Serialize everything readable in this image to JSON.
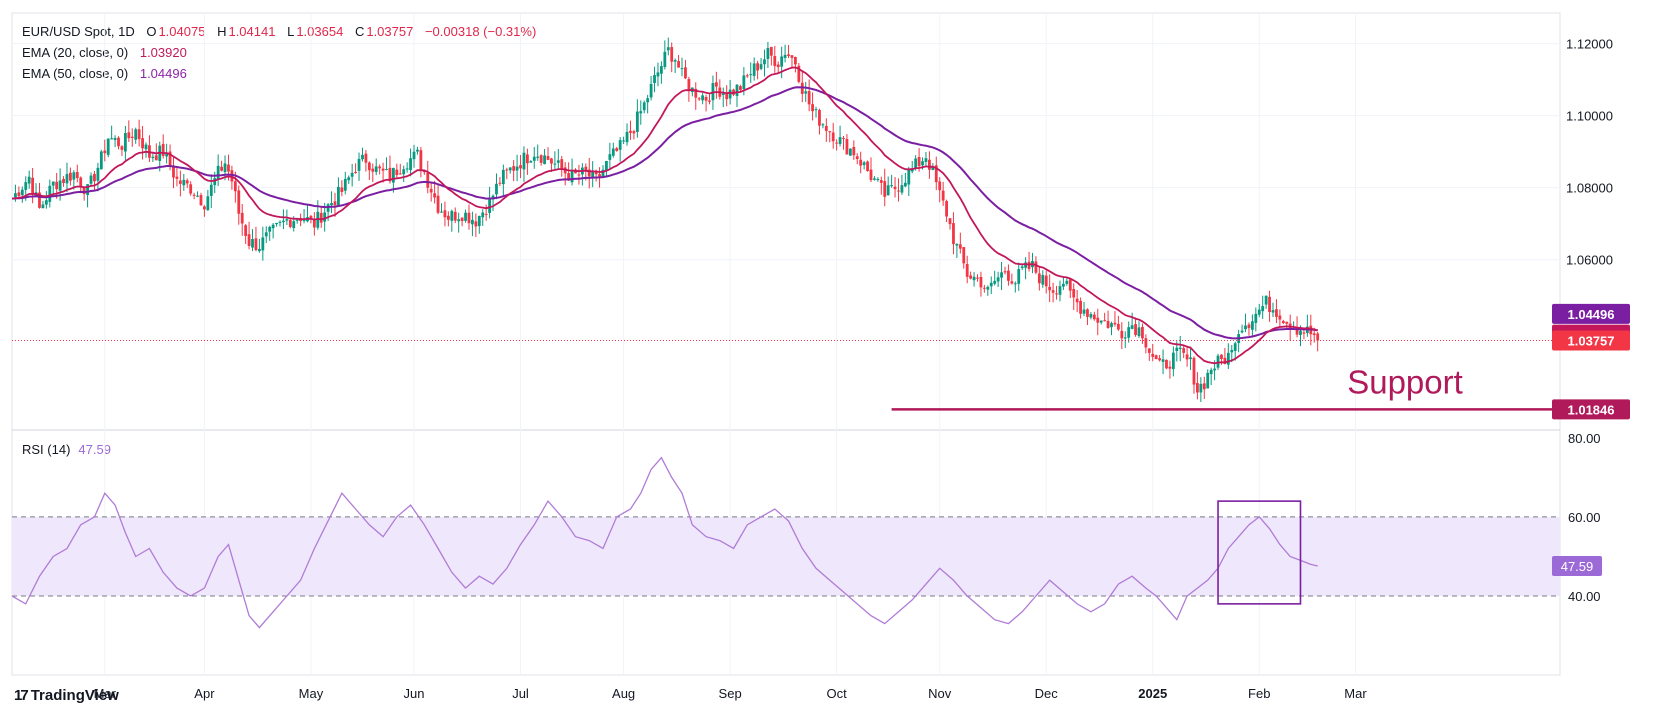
{
  "header": {
    "symbol": "EUR/USD Spot, 1D",
    "open_label": "O",
    "open": "1.04075",
    "high_label": "H",
    "high": "1.04141",
    "low_label": "L",
    "low": "1.03654",
    "close_label": "C",
    "close": "1.03757",
    "change": "−0.00318 (−0.31%)",
    "ema20_label": "EMA (20, close, 0)",
    "ema20_value": "1.03920",
    "ema50_label": "EMA (50, close, 0)",
    "ema50_value": "1.04496"
  },
  "rsi_legend": {
    "label": "RSI (14)",
    "value": "47.59"
  },
  "branding": {
    "name": "TradingView"
  },
  "colors": {
    "up": "#089981",
    "down": "#f23645",
    "ema20": "#c2185b",
    "ema50": "#7b1fa2",
    "support": "#b0195a",
    "rsi": "#b07cd6",
    "rsi_band": "#efe7fb"
  },
  "annotations": {
    "support_text": "Support",
    "support_price": "1.01846",
    "current_price": "1.03757",
    "ema20_tag": "1.03920",
    "ema50_tag": "1.04496",
    "rsi_tag": "47.59"
  },
  "chart_data": [
    {
      "type": "candlestick",
      "title": "EUR/USD Spot, 1D",
      "y_ticks": [
        "1.12000",
        "1.10000",
        "1.08000",
        "1.06000"
      ],
      "ylim": [
        1.0155,
        1.1285
      ],
      "x_ticks": [
        "Mar",
        "Apr",
        "May",
        "Jun",
        "Jul",
        "Aug",
        "Sep",
        "Oct",
        "Nov",
        "Dec",
        "2025",
        "Feb",
        "Mar"
      ],
      "x_tick_days": [
        27,
        56,
        87,
        117,
        148,
        178,
        209,
        240,
        270,
        301,
        332,
        363,
        391
      ],
      "x_range": [
        0,
        420
      ],
      "support_level": 1.01846,
      "close_level": 1.03757,
      "ema20_last": 1.0392,
      "ema50_last": 1.04496,
      "anchors": [
        [
          0,
          1.077
        ],
        [
          5,
          1.083
        ],
        [
          8,
          1.074
        ],
        [
          12,
          1.081
        ],
        [
          18,
          1.084
        ],
        [
          22,
          1.079
        ],
        [
          26,
          1.088
        ],
        [
          28,
          1.094
        ],
        [
          32,
          1.092
        ],
        [
          36,
          1.096
        ],
        [
          40,
          1.089
        ],
        [
          44,
          1.09
        ],
        [
          48,
          1.082
        ],
        [
          52,
          1.08
        ],
        [
          56,
          1.076
        ],
        [
          60,
          1.084
        ],
        [
          62,
          1.087
        ],
        [
          64,
          1.082
        ],
        [
          66,
          1.073
        ],
        [
          69,
          1.065
        ],
        [
          72,
          1.064
        ],
        [
          75,
          1.067
        ],
        [
          80,
          1.071
        ],
        [
          84,
          1.072
        ],
        [
          88,
          1.07
        ],
        [
          92,
          1.075
        ],
        [
          96,
          1.079
        ],
        [
          100,
          1.086
        ],
        [
          103,
          1.088
        ],
        [
          106,
          1.085
        ],
        [
          110,
          1.083
        ],
        [
          114,
          1.087
        ],
        [
          118,
          1.089
        ],
        [
          121,
          1.082
        ],
        [
          124,
          1.075
        ],
        [
          127,
          1.072
        ],
        [
          131,
          1.073
        ],
        [
          135,
          1.071
        ],
        [
          139,
          1.076
        ],
        [
          142,
          1.082
        ],
        [
          145,
          1.085
        ],
        [
          149,
          1.088
        ],
        [
          152,
          1.09
        ],
        [
          156,
          1.088
        ],
        [
          160,
          1.085
        ],
        [
          163,
          1.083
        ],
        [
          167,
          1.084
        ],
        [
          170,
          1.082
        ],
        [
          174,
          1.088
        ],
        [
          177,
          1.091
        ],
        [
          181,
          1.097
        ],
        [
          184,
          1.103
        ],
        [
          187,
          1.11
        ],
        [
          189,
          1.114
        ],
        [
          191,
          1.118
        ],
        [
          193,
          1.116
        ],
        [
          195,
          1.111
        ],
        [
          198,
          1.107
        ],
        [
          202,
          1.105
        ],
        [
          205,
          1.108
        ],
        [
          208,
          1.106
        ],
        [
          212,
          1.108
        ],
        [
          215,
          1.112
        ],
        [
          218,
          1.115
        ],
        [
          220,
          1.117
        ],
        [
          223,
          1.115
        ],
        [
          225,
          1.118
        ],
        [
          228,
          1.115
        ],
        [
          230,
          1.108
        ],
        [
          233,
          1.101
        ],
        [
          236,
          1.098
        ],
        [
          239,
          1.095
        ],
        [
          242,
          1.092
        ],
        [
          245,
          1.09
        ],
        [
          248,
          1.086
        ],
        [
          251,
          1.082
        ],
        [
          254,
          1.078
        ],
        [
          257,
          1.08
        ],
        [
          260,
          1.083
        ],
        [
          263,
          1.086
        ],
        [
          266,
          1.089
        ],
        [
          268,
          1.084
        ],
        [
          270,
          1.078
        ],
        [
          272,
          1.073
        ],
        [
          274,
          1.066
        ],
        [
          276,
          1.061
        ],
        [
          278,
          1.056
        ],
        [
          280,
          1.055
        ],
        [
          282,
          1.054
        ],
        [
          284,
          1.051
        ],
        [
          286,
          1.054
        ],
        [
          289,
          1.057
        ],
        [
          292,
          1.054
        ],
        [
          294,
          1.057
        ],
        [
          297,
          1.058
        ],
        [
          300,
          1.054
        ],
        [
          303,
          1.052
        ],
        [
          306,
          1.054
        ],
        [
          308,
          1.05
        ],
        [
          311,
          1.047
        ],
        [
          314,
          1.045
        ],
        [
          317,
          1.043
        ],
        [
          320,
          1.042
        ],
        [
          323,
          1.04
        ],
        [
          326,
          1.042
        ],
        [
          329,
          1.04
        ],
        [
          331,
          1.035
        ],
        [
          334,
          1.03
        ],
        [
          337,
          1.032
        ],
        [
          340,
          1.034
        ],
        [
          343,
          1.031
        ],
        [
          345,
          1.024
        ],
        [
          347,
          1.026
        ],
        [
          349,
          1.03
        ],
        [
          352,
          1.032
        ],
        [
          355,
          1.034
        ],
        [
          356,
          1.039
        ],
        [
          358,
          1.042
        ],
        [
          360,
          1.043
        ],
        [
          362,
          1.045
        ],
        [
          365,
          1.048
        ],
        [
          368,
          1.046
        ],
        [
          371,
          1.043
        ],
        [
          374,
          1.041
        ],
        [
          377,
          1.04
        ],
        [
          379,
          1.039
        ],
        [
          380,
          1.0376
        ]
      ]
    },
    {
      "type": "line",
      "title": "RSI (14)",
      "y_ticks": [
        "80.00",
        "60.00",
        "40.00"
      ],
      "ylim": [
        20,
        82
      ],
      "overbought": 60,
      "oversold": 40,
      "last_value": 47.59,
      "x": [
        0,
        4,
        8,
        12,
        16,
        20,
        24,
        27,
        30,
        33,
        36,
        40,
        44,
        48,
        52,
        56,
        60,
        63,
        66,
        69,
        72,
        76,
        80,
        84,
        88,
        92,
        96,
        100,
        104,
        108,
        112,
        116,
        120,
        124,
        128,
        132,
        136,
        140,
        144,
        148,
        152,
        156,
        160,
        164,
        168,
        172,
        176,
        180,
        183,
        186,
        189,
        192,
        195,
        198,
        202,
        206,
        210,
        214,
        218,
        222,
        226,
        230,
        234,
        238,
        242,
        246,
        250,
        254,
        258,
        262,
        266,
        270,
        274,
        278,
        282,
        286,
        290,
        294,
        298,
        302,
        306,
        310,
        314,
        318,
        322,
        326,
        330,
        333,
        336,
        339,
        342,
        345,
        348,
        351,
        354,
        357,
        360,
        363,
        366,
        369,
        372,
        375,
        378,
        380
      ],
      "values": [
        40,
        38,
        45,
        50,
        52,
        58,
        60,
        66,
        63,
        56,
        50,
        52,
        46,
        42,
        40,
        42,
        50,
        53,
        44,
        35,
        32,
        36,
        40,
        44,
        52,
        59,
        66,
        62,
        58,
        55,
        60,
        63,
        58,
        52,
        46,
        42,
        45,
        43,
        47,
        53,
        58,
        64,
        60,
        55,
        54,
        52,
        60,
        62,
        66,
        72,
        75,
        70,
        66,
        58,
        55,
        54,
        52,
        58,
        60,
        62,
        59,
        52,
        47,
        44,
        41,
        38,
        35,
        33,
        36,
        39,
        43,
        47,
        44,
        40,
        37,
        34,
        33,
        36,
        40,
        44,
        41,
        38,
        36,
        38,
        43,
        45,
        42,
        40,
        37,
        34,
        40,
        42,
        44,
        47,
        52,
        55,
        58,
        60,
        57,
        53,
        50,
        49,
        48,
        47.59
      ]
    }
  ]
}
